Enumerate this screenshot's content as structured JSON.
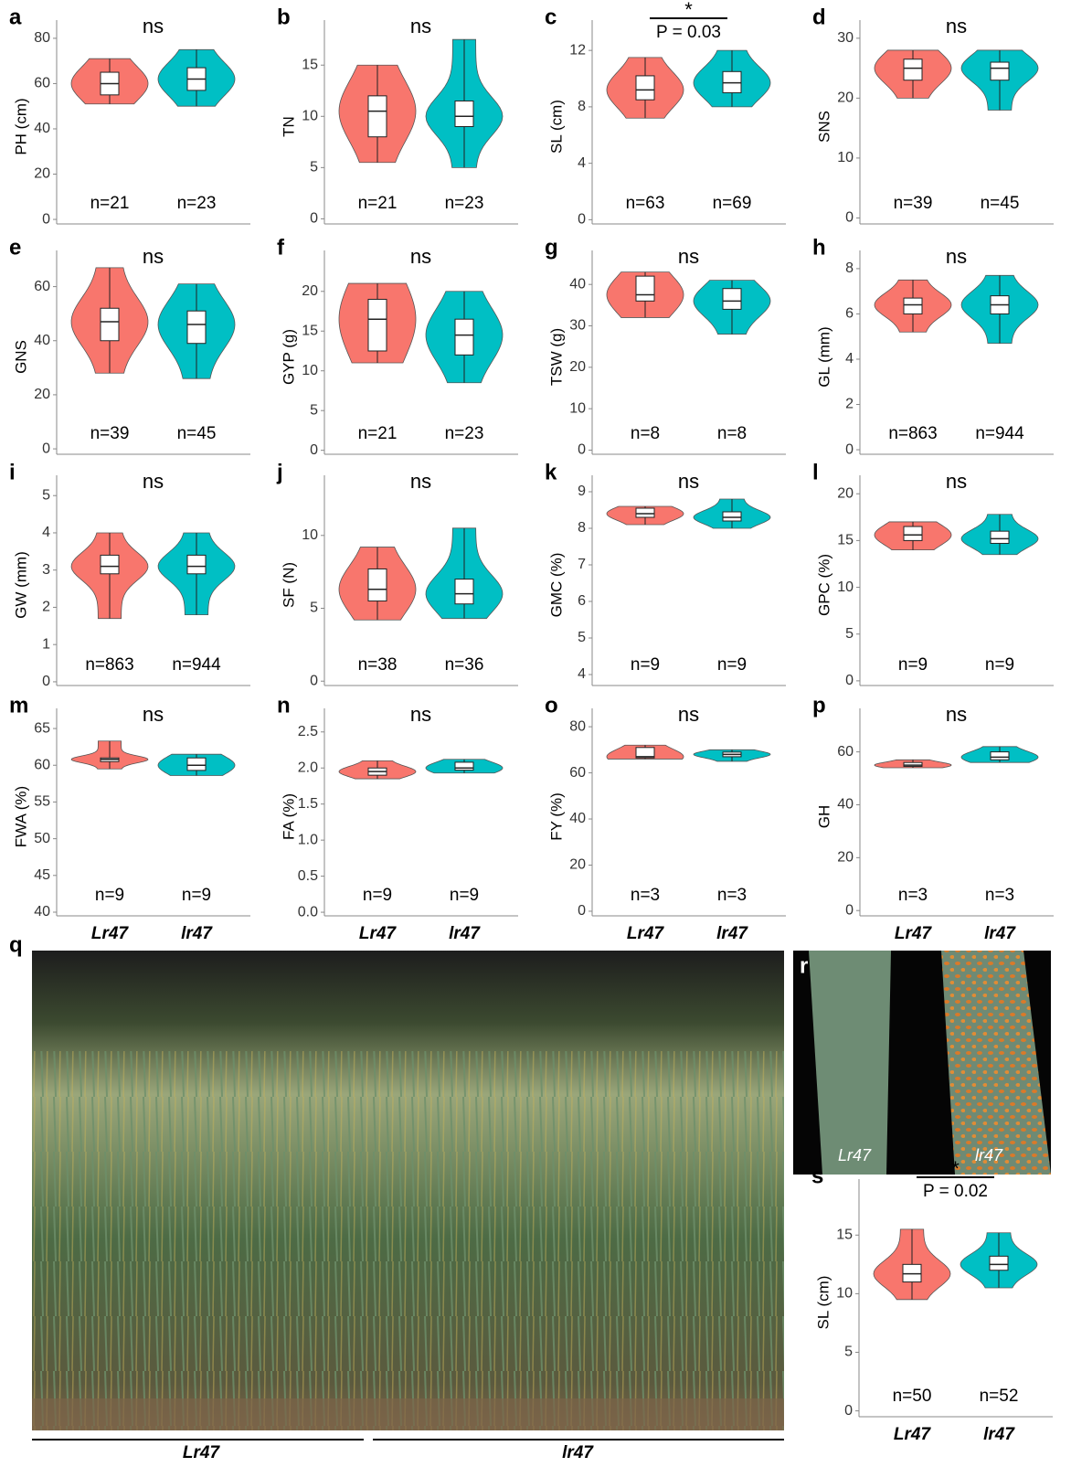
{
  "chart_data": [
    {
      "type": "violin",
      "label": "a",
      "ylabel": "PH (cm)",
      "annotation": "ns",
      "ylim": [
        -2,
        84
      ],
      "yticks": [
        0,
        20,
        40,
        60,
        80
      ],
      "groups": [
        {
          "color": "#f8766d",
          "min": 51,
          "q1": 55,
          "median": 60,
          "q3": 65,
          "max": 71,
          "n_label": "n=21"
        },
        {
          "color": "#00bfc4",
          "min": 50,
          "q1": 57,
          "median": 62,
          "q3": 67,
          "max": 75,
          "n_label": "n=23"
        }
      ]
    },
    {
      "type": "violin",
      "label": "b",
      "ylabel": "TN",
      "annotation": "ns",
      "ylim": [
        -0.5,
        18.5
      ],
      "yticks": [
        0,
        5,
        10,
        15
      ],
      "groups": [
        {
          "color": "#f8766d",
          "min": 5.5,
          "q1": 8,
          "median": 10.5,
          "q3": 12,
          "max": 15,
          "n_label": "n=21"
        },
        {
          "color": "#00bfc4",
          "min": 5,
          "q1": 9,
          "median": 10,
          "q3": 11.5,
          "max": 17.5,
          "n_label": "n=23"
        }
      ]
    },
    {
      "type": "violin",
      "label": "c",
      "ylabel": "SL (cm)",
      "annotation": "*",
      "p_label": "P = 0.03",
      "ylim": [
        -0.3,
        13.5
      ],
      "yticks": [
        0,
        4,
        8,
        12
      ],
      "groups": [
        {
          "color": "#f8766d",
          "min": 7.2,
          "q1": 8.5,
          "median": 9.2,
          "q3": 10.2,
          "max": 11.5,
          "n_label": "n=63"
        },
        {
          "color": "#00bfc4",
          "min": 8,
          "q1": 9,
          "median": 9.7,
          "q3": 10.5,
          "max": 12,
          "n_label": "n=69"
        }
      ]
    },
    {
      "type": "violin",
      "label": "d",
      "ylabel": "SNS",
      "annotation": "ns",
      "ylim": [
        -1,
        31.5
      ],
      "yticks": [
        0,
        10,
        20,
        30
      ],
      "groups": [
        {
          "color": "#f8766d",
          "min": 20,
          "q1": 23,
          "median": 25,
          "q3": 26.5,
          "max": 28,
          "n_label": "n=39"
        },
        {
          "color": "#00bfc4",
          "min": 18,
          "q1": 23,
          "median": 25,
          "q3": 26,
          "max": 28,
          "n_label": "n=45"
        }
      ]
    },
    {
      "type": "violin",
      "label": "e",
      "ylabel": "GNS",
      "annotation": "ns",
      "ylim": [
        -2,
        70
      ],
      "yticks": [
        0,
        20,
        40,
        60
      ],
      "groups": [
        {
          "color": "#f8766d",
          "min": 28,
          "q1": 40,
          "median": 47,
          "q3": 52,
          "max": 67,
          "n_label": "n=39"
        },
        {
          "color": "#00bfc4",
          "min": 26,
          "q1": 39,
          "median": 46,
          "q3": 51,
          "max": 61,
          "n_label": "n=45"
        }
      ]
    },
    {
      "type": "violin",
      "label": "f",
      "ylabel": "GYP (g)",
      "annotation": "ns",
      "ylim": [
        -0.5,
        24
      ],
      "yticks": [
        0,
        5,
        10,
        15,
        20
      ],
      "groups": [
        {
          "color": "#f8766d",
          "min": 11,
          "q1": 12.5,
          "median": 16.5,
          "q3": 19,
          "max": 21,
          "n_label": "n=21"
        },
        {
          "color": "#00bfc4",
          "min": 8.5,
          "q1": 12,
          "median": 14.5,
          "q3": 16.5,
          "max": 20,
          "n_label": "n=23"
        }
      ]
    },
    {
      "type": "violin",
      "label": "g",
      "ylabel": "TSW (g)",
      "annotation": "ns",
      "ylim": [
        -1,
        46
      ],
      "yticks": [
        0,
        10,
        20,
        30,
        40
      ],
      "groups": [
        {
          "color": "#f8766d",
          "min": 32,
          "q1": 36,
          "median": 37.5,
          "q3": 42,
          "max": 43,
          "n_label": "n=8"
        },
        {
          "color": "#00bfc4",
          "min": 28,
          "q1": 34,
          "median": 36,
          "q3": 39,
          "max": 41,
          "n_label": "n=8"
        }
      ]
    },
    {
      "type": "violin",
      "label": "h",
      "ylabel": "GL (mm)",
      "annotation": "ns",
      "ylim": [
        -0.2,
        8.4
      ],
      "yticks": [
        0,
        2,
        4,
        6,
        8
      ],
      "groups": [
        {
          "color": "#f8766d",
          "min": 5.2,
          "q1": 6,
          "median": 6.4,
          "q3": 6.7,
          "max": 7.5,
          "n_label": "n=863"
        },
        {
          "color": "#00bfc4",
          "min": 4.7,
          "q1": 6,
          "median": 6.4,
          "q3": 6.8,
          "max": 7.7,
          "n_label": "n=944"
        }
      ]
    },
    {
      "type": "violin",
      "label": "i",
      "ylabel": "GW (mm)",
      "annotation": "ns",
      "ylim": [
        -0.1,
        5.3
      ],
      "yticks": [
        0,
        1,
        2,
        3,
        4,
        5
      ],
      "groups": [
        {
          "color": "#f8766d",
          "min": 1.7,
          "q1": 2.9,
          "median": 3.1,
          "q3": 3.4,
          "max": 4,
          "n_label": "n=863"
        },
        {
          "color": "#00bfc4",
          "min": 1.8,
          "q1": 2.9,
          "median": 3.1,
          "q3": 3.4,
          "max": 4,
          "n_label": "n=944"
        }
      ]
    },
    {
      "type": "violin",
      "label": "j",
      "ylabel": "SF (N)",
      "annotation": "ns",
      "ylim": [
        -0.3,
        13.5
      ],
      "yticks": [
        0,
        5,
        10
      ],
      "groups": [
        {
          "color": "#f8766d",
          "min": 4.2,
          "q1": 5.5,
          "median": 6.3,
          "q3": 7.7,
          "max": 9.2,
          "n_label": "n=38"
        },
        {
          "color": "#00bfc4",
          "min": 4.3,
          "q1": 5.3,
          "median": 6,
          "q3": 7,
          "max": 10.5,
          "n_label": "n=36"
        }
      ]
    },
    {
      "type": "violin",
      "label": "k",
      "ylabel": "GMC (%)",
      "annotation": "ns",
      "ylim": [
        3.7,
        9.2
      ],
      "yticks": [
        4,
        5,
        6,
        7,
        8,
        9
      ],
      "groups": [
        {
          "color": "#f8766d",
          "min": 8.1,
          "q1": 8.3,
          "median": 8.4,
          "q3": 8.55,
          "max": 8.6,
          "n_label": "n=9"
        },
        {
          "color": "#00bfc4",
          "min": 8,
          "q1": 8.2,
          "median": 8.3,
          "q3": 8.45,
          "max": 8.8,
          "n_label": "n=9"
        }
      ]
    },
    {
      "type": "violin",
      "label": "l",
      "ylabel": "GPC (%)",
      "annotation": "ns",
      "ylim": [
        -0.5,
        21
      ],
      "yticks": [
        0,
        5,
        10,
        15,
        20
      ],
      "groups": [
        {
          "color": "#f8766d",
          "min": 14,
          "q1": 15,
          "median": 15.6,
          "q3": 16.5,
          "max": 17,
          "n_label": "n=9"
        },
        {
          "color": "#00bfc4",
          "min": 13.5,
          "q1": 14.7,
          "median": 15.2,
          "q3": 16,
          "max": 17.8,
          "n_label": "n=9"
        }
      ]
    },
    {
      "type": "violin",
      "label": "m",
      "ylabel": "FWA (%)",
      "annotation": "ns",
      "ylim": [
        39.5,
        66.5
      ],
      "yticks": [
        40,
        45,
        50,
        55,
        60,
        65
      ],
      "categories": [
        "Lr47",
        "lr47"
      ],
      "groups": [
        {
          "color": "#f8766d",
          "min": 59.5,
          "q1": 60.5,
          "median": 60.8,
          "q3": 61,
          "max": 63.3,
          "n_label": "n=9"
        },
        {
          "color": "#00bfc4",
          "min": 58.6,
          "q1": 59.3,
          "median": 60,
          "q3": 61,
          "max": 61.5,
          "n_label": "n=9"
        }
      ]
    },
    {
      "type": "violin",
      "label": "n",
      "ylabel": "FA (%)",
      "annotation": "ns",
      "ylim": [
        -0.05,
        2.7
      ],
      "yticks": [
        {
          "value": 0,
          "label": "0.0"
        },
        0.5,
        {
          "value": 1,
          "label": "1.0"
        },
        1.5,
        {
          "value": 2,
          "label": "2.0"
        },
        2.5
      ],
      "categories": [
        "Lr47",
        "lr47"
      ],
      "groups": [
        {
          "color": "#f8766d",
          "min": 1.85,
          "q1": 1.9,
          "median": 1.95,
          "q3": 2.0,
          "max": 2.1,
          "n_label": "n=9"
        },
        {
          "color": "#00bfc4",
          "min": 1.93,
          "q1": 1.97,
          "median": 2.0,
          "q3": 2.08,
          "max": 2.12,
          "n_label": "n=9"
        }
      ]
    },
    {
      "type": "violin",
      "label": "o",
      "ylabel": "FY (%)",
      "annotation": "ns",
      "ylim": [
        -2,
        84
      ],
      "yticks": [
        0,
        20,
        40,
        60,
        80
      ],
      "categories": [
        "Lr47",
        "lr47"
      ],
      "groups": [
        {
          "color": "#f8766d",
          "min": 66,
          "q1": 66.5,
          "median": 67,
          "q3": 71,
          "max": 72,
          "n_label": "n=3"
        },
        {
          "color": "#00bfc4",
          "min": 65,
          "q1": 67,
          "median": 68,
          "q3": 69,
          "max": 70,
          "n_label": "n=3"
        }
      ]
    },
    {
      "type": "violin",
      "label": "p",
      "ylabel": "GH",
      "annotation": "ns",
      "ylim": [
        -2,
        73
      ],
      "yticks": [
        0,
        20,
        40,
        60
      ],
      "categories": [
        "Lr47",
        "lr47"
      ],
      "groups": [
        {
          "color": "#f8766d",
          "min": 54,
          "q1": 54.5,
          "median": 55,
          "q3": 56,
          "max": 57,
          "n_label": "n=3"
        },
        {
          "color": "#00bfc4",
          "min": 56,
          "q1": 57,
          "median": 58,
          "q3": 60,
          "max": 62,
          "n_label": "n=3"
        }
      ]
    },
    {
      "type": "violin",
      "label": "s",
      "ylabel": "SL (cm)",
      "annotation": "*",
      "p_label": "P = 0.02",
      "ylim": [
        -0.5,
        19
      ],
      "yticks": [
        0,
        5,
        10,
        15
      ],
      "categories": [
        "Lr47",
        "lr47"
      ],
      "groups": [
        {
          "color": "#f8766d",
          "min": 9.5,
          "q1": 11,
          "median": 11.7,
          "q3": 12.5,
          "max": 15.5,
          "n_label": "n=50"
        },
        {
          "color": "#00bfc4",
          "min": 10.5,
          "q1": 12,
          "median": 12.5,
          "q3": 13.2,
          "max": 15.2,
          "n_label": "n=52"
        }
      ]
    }
  ],
  "photo_q": {
    "label": "q",
    "left_label": "Lr47",
    "right_label": "lr47"
  },
  "photo_r": {
    "label": "r",
    "left_label": "Lr47",
    "right_label": "lr47"
  }
}
